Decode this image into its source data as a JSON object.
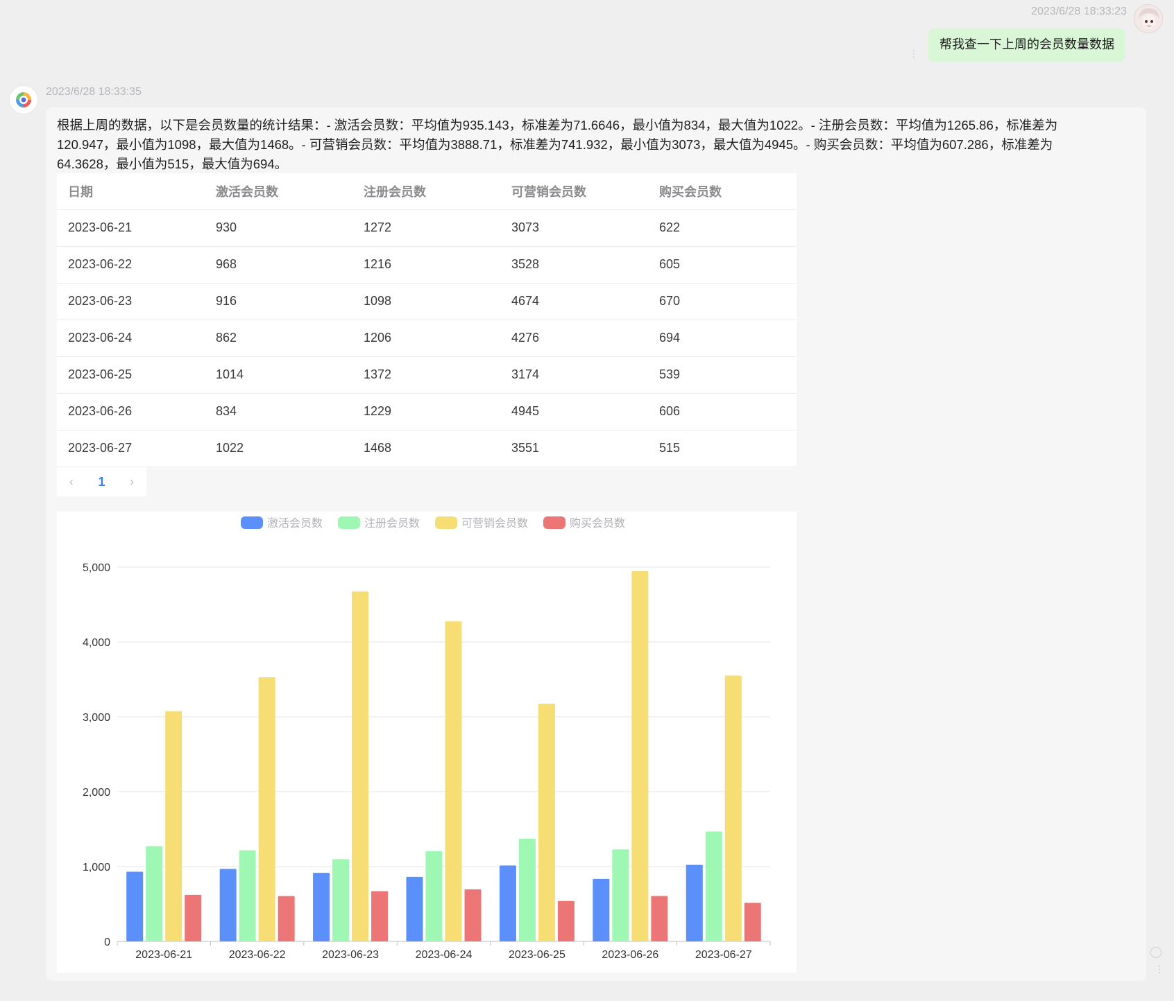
{
  "user_message": {
    "time": "2023/6/28 18:33:23",
    "text": "帮我查一下上周的会员数量数据"
  },
  "bot_message": {
    "time": "2023/6/28 18:33:35",
    "text": "根据上周的数据，以下是会员数量的统计结果：- 激活会员数：平均值为935.143，标准差为71.6646，最小值为834，最大值为1022。- 注册会员数：平均值为1265.86，标准差为120.947，最小值为1098，最大值为1468。- 可营销会员数：平均值为3888.71，标准差为741.932，最小值为3073，最大值为4945。- 购买会员数：平均值为607.286，标准差为64.3628，最小值为515，最大值为694。"
  },
  "table": {
    "headers": [
      "日期",
      "激活会员数",
      "注册会员数",
      "可营销会员数",
      "购买会员数"
    ],
    "rows": [
      [
        "2023-06-21",
        "930",
        "1272",
        "3073",
        "622"
      ],
      [
        "2023-06-22",
        "968",
        "1216",
        "3528",
        "605"
      ],
      [
        "2023-06-23",
        "916",
        "1098",
        "4674",
        "670"
      ],
      [
        "2023-06-24",
        "862",
        "1206",
        "4276",
        "694"
      ],
      [
        "2023-06-25",
        "1014",
        "1372",
        "3174",
        "539"
      ],
      [
        "2023-06-26",
        "834",
        "1229",
        "4945",
        "606"
      ],
      [
        "2023-06-27",
        "1022",
        "1468",
        "3551",
        "515"
      ]
    ]
  },
  "pagination": {
    "prev": "‹",
    "current": "1",
    "next": "›"
  },
  "chart_data": {
    "type": "bar",
    "categories": [
      "2023-06-21",
      "2023-06-22",
      "2023-06-23",
      "2023-06-24",
      "2023-06-25",
      "2023-06-26",
      "2023-06-27"
    ],
    "series": [
      {
        "name": "激活会员数",
        "color": "#5b8ff9",
        "values": [
          930,
          968,
          916,
          862,
          1014,
          834,
          1022
        ]
      },
      {
        "name": "注册会员数",
        "color": "#9ef7b2",
        "values": [
          1272,
          1216,
          1098,
          1206,
          1372,
          1229,
          1468
        ]
      },
      {
        "name": "可营销会员数",
        "color": "#f6dd74",
        "values": [
          3073,
          3528,
          4674,
          4276,
          3174,
          4945,
          3551
        ]
      },
      {
        "name": "购买会员数",
        "color": "#ec7676",
        "values": [
          622,
          605,
          670,
          694,
          539,
          606,
          515
        ]
      }
    ],
    "yticks": [
      "0",
      "1,000",
      "2,000",
      "3,000",
      "4,000",
      "5,000"
    ],
    "ylim": [
      0,
      5000
    ],
    "grid": true,
    "legend": "top"
  }
}
